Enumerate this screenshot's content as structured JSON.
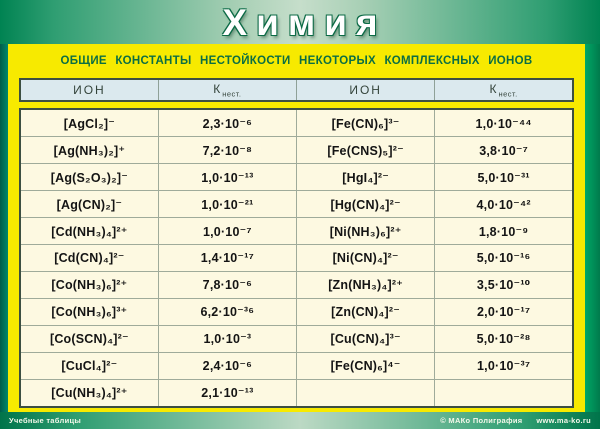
{
  "poster": {
    "title": "Химия",
    "subtitle": "ОБЩИЕ КОНСТАНТЫ НЕСТОЙКОСТИ НЕКОТОРЫХ КОМПЛЕКСНЫХ ИОНОВ",
    "footer": {
      "left": "Учебные таблицы",
      "right_copyright": "© МАКо Полиграфия",
      "right_url": "www.ma-ko.ru"
    },
    "colors": {
      "band_green_edge": "#008352",
      "band_green_center": "#c6decb",
      "frame_yellow": "#f7ea00",
      "header_cell_blue": "#dbe9ee",
      "body_cell_cream": "#fdf9e1",
      "subtitle_green": "#0b6e44",
      "left_strip_teal": "#00745c"
    }
  },
  "table": {
    "ion_header": "ИОН",
    "k_header_main": "К",
    "k_header_sub": "нест.",
    "rows": [
      [
        "[AgCl₂]⁻",
        "2,3·10⁻⁶",
        "[Fe(CN)₆]³⁻",
        "1,0·10⁻⁴⁴"
      ],
      [
        "[Ag(NH₃)₂]⁺",
        "7,2·10⁻⁸",
        "[Fe(CNS)₅]²⁻",
        "3,8·10⁻⁷"
      ],
      [
        "[Ag(S₂O₃)₂]⁻",
        "1,0·10⁻¹³",
        "[HgI₄]²⁻",
        "5,0·10⁻³¹"
      ],
      [
        "[Ag(CN)₂]⁻",
        "1,0·10⁻²¹",
        "[Hg(CN)₄]²⁻",
        "4,0·10⁻⁴²"
      ],
      [
        "[Cd(NH₃)₄]²⁺",
        "1,0·10⁻⁷",
        "[Ni(NH₃)₆]²⁺",
        "1,8·10⁻⁹"
      ],
      [
        "[Cd(CN)₄]²⁻",
        "1,4·10⁻¹⁷",
        "[Ni(CN)₄]²⁻",
        "5,0·10⁻¹⁶"
      ],
      [
        "[Co(NH₃)₆]²⁺",
        "7,8·10⁻⁶",
        "[Zn(NH₃)₄]²⁺",
        "3,5·10⁻¹⁰"
      ],
      [
        "[Co(NH₃)₆]³⁺",
        "6,2·10⁻³⁶",
        "[Zn(CN)₄]²⁻",
        "2,0·10⁻¹⁷"
      ],
      [
        "[Co(SCN)₄]²⁻",
        "1,0·10⁻³",
        "[Cu(CN)₄]³⁻",
        "5,0·10⁻²⁸"
      ],
      [
        "[CuCl₄]²⁻",
        "2,4·10⁻⁶",
        "[Fe(CN)₆]⁴⁻",
        "1,0·10⁻³⁷"
      ],
      [
        "[Cu(NH₃)₄]²⁺",
        "2,1·10⁻¹³",
        "",
        ""
      ]
    ]
  }
}
